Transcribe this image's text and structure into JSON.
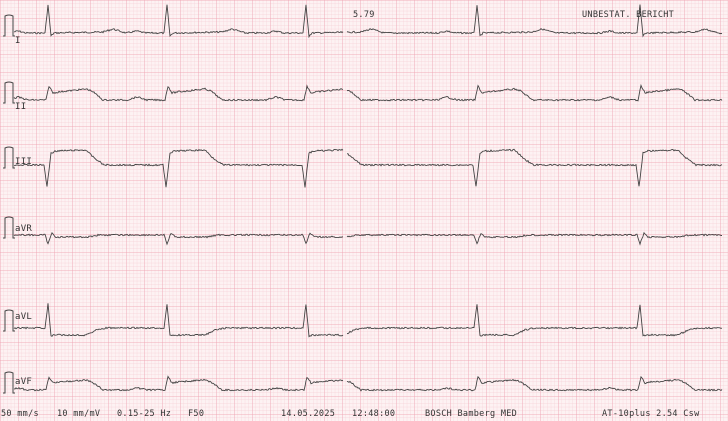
{
  "header": {
    "code": "5.79",
    "status": "UNBESTAT. BERICHT"
  },
  "footer": {
    "speed": "50 mm/s",
    "gain": "10 mm/mV",
    "filter": "0.15-25 Hz",
    "mains_filter": "F50",
    "date": "14.05.2025",
    "time": "12:48:00",
    "institution": "BOSCH Bamberg MED",
    "device": "AT-10plus 2.54 Csw"
  },
  "colors": {
    "paper": "#fdf2f3",
    "grid_minor": "#f6cdd4",
    "grid_major": "#ee9fae",
    "trace": "#444444"
  },
  "chart_data": {
    "type": "line",
    "title": "",
    "leads": [
      "I",
      "II",
      "III",
      "aVR",
      "aVL",
      "aVF"
    ],
    "paper_speed": "50 mm/s",
    "gain": "10 mm/mV",
    "grid": true,
    "morphology": {
      "I": "small upright R, flat ST",
      "II": "ST elevation",
      "III": "ST elevation",
      "aVR": "small negative QRS",
      "aVL": "upright R, ST depression",
      "aVF": "ST elevation"
    }
  }
}
